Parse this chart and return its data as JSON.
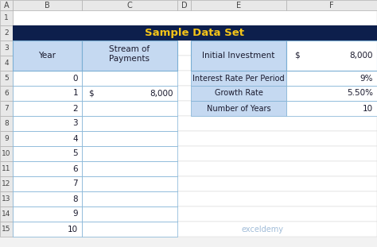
{
  "title": "Sample Data Set",
  "title_bg": "#0d1f4c",
  "title_color": "#f5c518",
  "header_bg": "#c5d9f1",
  "cell_bg": "#ffffff",
  "border_color": "#7bafd4",
  "col_label_bg": "#e8e8e8",
  "row_label_bg": "#e8e8e8",
  "label_color": "#555555",
  "years": [
    0,
    1,
    2,
    3,
    4,
    5,
    6,
    7,
    8,
    9,
    10
  ],
  "right_table_rows": [
    [
      "Interest Rate Per Period",
      "9%"
    ],
    [
      "Growth Rate",
      "5.50%"
    ],
    [
      "Number of Years",
      "10"
    ]
  ],
  "col_letters": [
    "A",
    "B",
    "C",
    "D",
    "E",
    "F"
  ],
  "row_numbers": [
    "1",
    "2",
    "3",
    "4",
    "5",
    "6",
    "7",
    "8",
    "9",
    "10",
    "11",
    "12",
    "13",
    "14",
    "15"
  ]
}
